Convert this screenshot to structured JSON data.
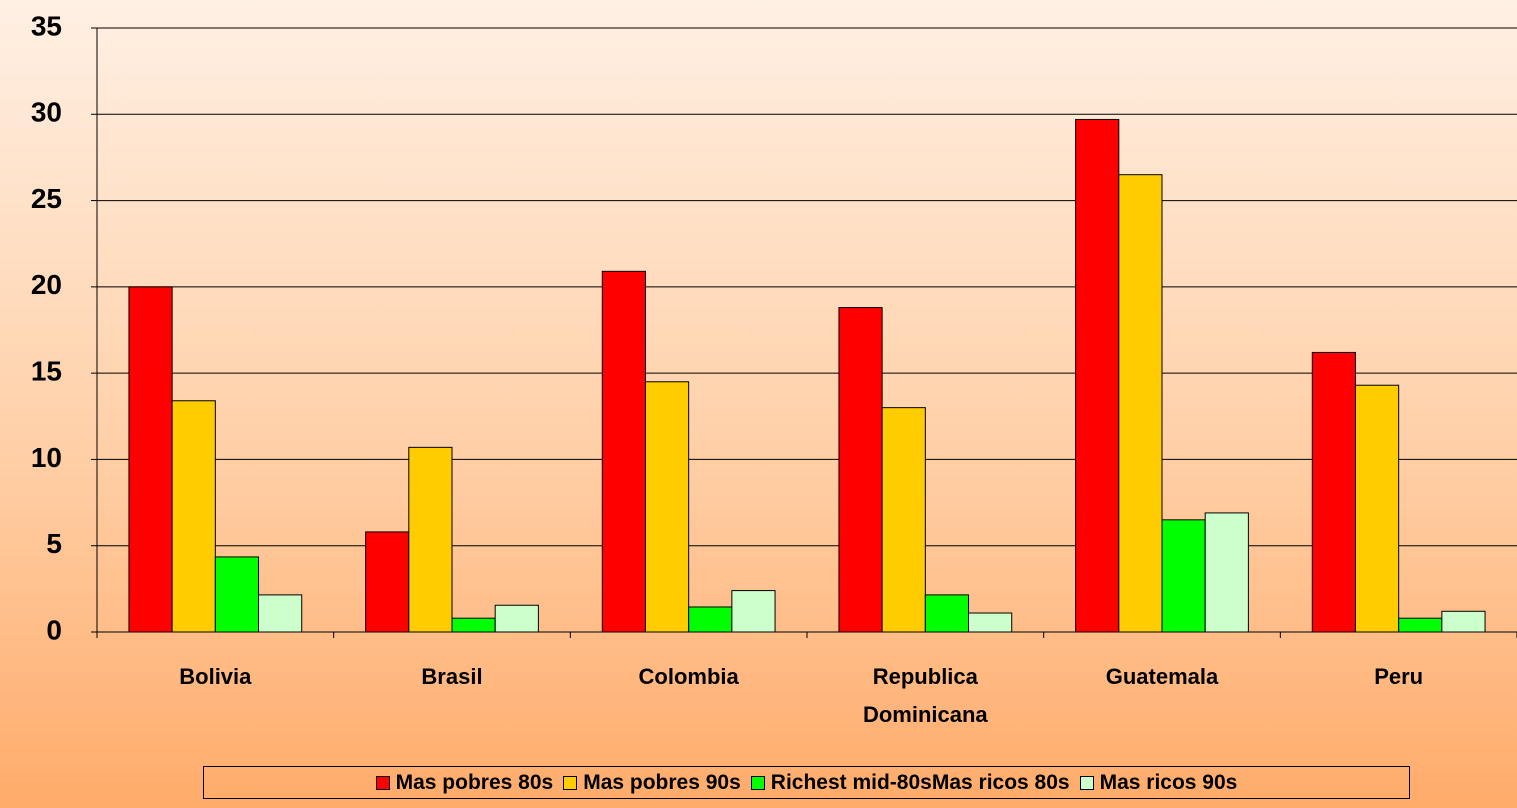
{
  "chart_data": {
    "type": "bar",
    "categories": [
      "Bolivia",
      "Brasil",
      "Colombia",
      "Republica Dominicana",
      "Guatemala",
      "Peru"
    ],
    "series": [
      {
        "name": "Mas pobres 80s",
        "color": "#ff0000",
        "values": [
          20.0,
          5.8,
          20.9,
          18.8,
          29.7,
          16.2
        ]
      },
      {
        "name": "Mas pobres 90s",
        "color": "#ffcc00",
        "values": [
          13.4,
          10.7,
          14.5,
          13.0,
          26.5,
          14.3
        ]
      },
      {
        "name": "Richest mid-80sMas ricos 80s",
        "color": "#00ff00",
        "values": [
          4.35,
          0.8,
          1.45,
          2.15,
          6.5,
          0.8
        ]
      },
      {
        "name": "Mas ricos 90s",
        "color": "#ccffcc",
        "values": [
          2.15,
          1.55,
          2.4,
          1.1,
          6.9,
          1.2
        ]
      }
    ],
    "ylim": [
      0,
      35
    ],
    "yticks": [
      0,
      5,
      10,
      15,
      20,
      25,
      30,
      35
    ],
    "grid": true,
    "legend": "bottom"
  }
}
